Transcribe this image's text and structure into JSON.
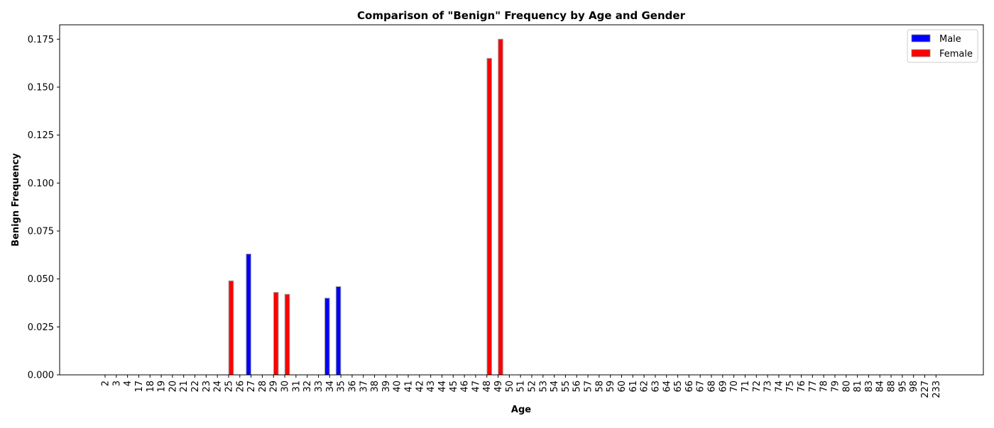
{
  "chart_data": {
    "type": "bar",
    "title": "Comparison of \"Benign\" Frequency by Age and Gender",
    "xlabel": "Age",
    "ylabel": "Benign Frequency",
    "categories": [
      "2",
      "3",
      "4",
      "17",
      "18",
      "19",
      "20",
      "21",
      "22",
      "23",
      "24",
      "25",
      "26",
      "27",
      "28",
      "29",
      "30",
      "31",
      "32",
      "33",
      "34",
      "35",
      "36",
      "37",
      "38",
      "39",
      "40",
      "41",
      "42",
      "43",
      "44",
      "45",
      "46",
      "47",
      "48",
      "49",
      "50",
      "51",
      "52",
      "53",
      "54",
      "55",
      "56",
      "57",
      "58",
      "59",
      "60",
      "61",
      "62",
      "63",
      "64",
      "65",
      "66",
      "67",
      "68",
      "69",
      "70",
      "71",
      "72",
      "73",
      "74",
      "75",
      "76",
      "77",
      "78",
      "79",
      "80",
      "81",
      "83",
      "84",
      "88",
      "95",
      "98",
      "227",
      "233"
    ],
    "series": [
      {
        "name": "Male",
        "color": "#0000ff",
        "values": [
          0,
          0,
          0,
          0,
          0,
          0,
          0,
          0,
          0,
          0,
          0,
          0,
          0,
          0.063,
          0,
          0,
          0,
          0,
          0,
          0,
          0.04,
          0.046,
          0,
          0,
          0,
          0,
          0,
          0,
          0,
          0,
          0,
          0,
          0,
          0,
          0,
          0,
          0,
          0,
          0,
          0,
          0,
          0,
          0,
          0,
          0,
          0,
          0,
          0,
          0,
          0,
          0,
          0,
          0,
          0,
          0,
          0,
          0,
          0,
          0,
          0,
          0,
          0,
          0,
          0,
          0,
          0,
          0,
          0,
          0,
          0,
          0,
          0,
          0,
          0,
          0
        ]
      },
      {
        "name": "Female",
        "color": "#ff0000",
        "values": [
          0,
          0,
          0,
          0,
          0,
          0,
          0,
          0,
          0,
          0,
          0,
          0.049,
          0,
          0,
          0,
          0.043,
          0.042,
          0,
          0,
          0,
          0,
          0,
          0,
          0,
          0,
          0,
          0,
          0,
          0,
          0,
          0,
          0,
          0,
          0,
          0.165,
          0.175,
          0,
          0,
          0,
          0,
          0,
          0,
          0,
          0,
          0,
          0,
          0,
          0,
          0,
          0,
          0,
          0,
          0,
          0,
          0,
          0,
          0,
          0,
          0,
          0,
          0,
          0,
          0,
          0,
          0,
          0,
          0,
          0,
          0,
          0,
          0,
          0,
          0,
          0,
          0
        ]
      }
    ],
    "ylim": [
      0,
      0.1825
    ],
    "yticks": [
      "0.000",
      "0.025",
      "0.050",
      "0.075",
      "0.100",
      "0.125",
      "0.150",
      "0.175"
    ],
    "ytick_values": [
      0,
      0.025,
      0.05,
      0.075,
      0.1,
      0.125,
      0.15,
      0.175
    ],
    "legend_position": "top-right",
    "grid": false
  }
}
